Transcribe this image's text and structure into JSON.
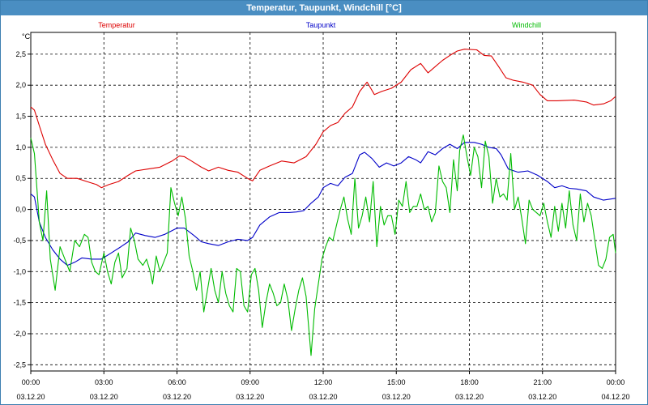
{
  "window": {
    "title": "Temperatur, Taupunkt, Windchill [°C]"
  },
  "chart_data": {
    "type": "line",
    "title": "Temperatur, Taupunkt, Windchill [°C]",
    "unit_label": "°C",
    "ylim": [
      -2.6,
      2.85
    ],
    "y_ticks": [
      2.5,
      2.0,
      1.5,
      1.0,
      0.5,
      0.0,
      -0.5,
      -1.0,
      -1.5,
      -2.0,
      -2.5
    ],
    "y_tick_labels": [
      "2,5",
      "2,0",
      "1,5",
      "1,0",
      "0,5",
      "0,0",
      "-0,5",
      "-1,0",
      "-1,5",
      "-2,0",
      "-2,5"
    ],
    "xlim": [
      0,
      24
    ],
    "x_ticks": [
      {
        "h": 0,
        "time": "00:00",
        "date": "03.12.20"
      },
      {
        "h": 3,
        "time": "03:00",
        "date": "03.12.20"
      },
      {
        "h": 6,
        "time": "06:00",
        "date": "03.12.20"
      },
      {
        "h": 9,
        "time": "09:00",
        "date": "03.12.20"
      },
      {
        "h": 12,
        "time": "12:00",
        "date": "03.12.20"
      },
      {
        "h": 15,
        "time": "15:00",
        "date": "03.12.20"
      },
      {
        "h": 18,
        "time": "18:00",
        "date": "03.12.20"
      },
      {
        "h": 21,
        "time": "21:00",
        "date": "03.12.20"
      },
      {
        "h": 24,
        "time": "00:00",
        "date": "04.12.20"
      }
    ],
    "grid": true,
    "legend_position": "top",
    "series": [
      {
        "name": "Temperatur",
        "color": "#dd0000",
        "points": [
          [
            0.0,
            1.65
          ],
          [
            0.15,
            1.6
          ],
          [
            0.35,
            1.35
          ],
          [
            0.6,
            1.05
          ],
          [
            0.9,
            0.8
          ],
          [
            1.2,
            0.58
          ],
          [
            1.5,
            0.5
          ],
          [
            1.9,
            0.5
          ],
          [
            2.3,
            0.45
          ],
          [
            2.7,
            0.4
          ],
          [
            2.9,
            0.35
          ],
          [
            3.2,
            0.4
          ],
          [
            3.6,
            0.45
          ],
          [
            4.0,
            0.55
          ],
          [
            4.3,
            0.62
          ],
          [
            4.8,
            0.65
          ],
          [
            5.3,
            0.68
          ],
          [
            5.8,
            0.78
          ],
          [
            6.1,
            0.86
          ],
          [
            6.3,
            0.85
          ],
          [
            6.6,
            0.78
          ],
          [
            7.0,
            0.68
          ],
          [
            7.3,
            0.62
          ],
          [
            7.7,
            0.68
          ],
          [
            8.1,
            0.63
          ],
          [
            8.5,
            0.6
          ],
          [
            8.9,
            0.5
          ],
          [
            9.1,
            0.46
          ],
          [
            9.4,
            0.63
          ],
          [
            9.8,
            0.7
          ],
          [
            10.3,
            0.78
          ],
          [
            10.8,
            0.75
          ],
          [
            11.3,
            0.85
          ],
          [
            11.7,
            1.05
          ],
          [
            12.0,
            1.25
          ],
          [
            12.3,
            1.35
          ],
          [
            12.6,
            1.4
          ],
          [
            12.9,
            1.55
          ],
          [
            13.2,
            1.65
          ],
          [
            13.5,
            1.9
          ],
          [
            13.8,
            2.05
          ],
          [
            14.1,
            1.85
          ],
          [
            14.4,
            1.9
          ],
          [
            14.8,
            1.95
          ],
          [
            15.2,
            2.05
          ],
          [
            15.6,
            2.25
          ],
          [
            16.0,
            2.35
          ],
          [
            16.3,
            2.2
          ],
          [
            16.6,
            2.3
          ],
          [
            16.9,
            2.4
          ],
          [
            17.2,
            2.48
          ],
          [
            17.5,
            2.55
          ],
          [
            17.8,
            2.58
          ],
          [
            18.3,
            2.57
          ],
          [
            18.6,
            2.48
          ],
          [
            18.9,
            2.47
          ],
          [
            19.2,
            2.3
          ],
          [
            19.5,
            2.12
          ],
          [
            19.8,
            2.08
          ],
          [
            20.2,
            2.05
          ],
          [
            20.6,
            2.0
          ],
          [
            20.9,
            1.85
          ],
          [
            21.2,
            1.75
          ],
          [
            21.6,
            1.75
          ],
          [
            22.3,
            1.76
          ],
          [
            22.8,
            1.73
          ],
          [
            23.1,
            1.68
          ],
          [
            23.5,
            1.7
          ],
          [
            23.8,
            1.75
          ],
          [
            24.0,
            1.82
          ]
        ]
      },
      {
        "name": "Taupunkt",
        "color": "#0000c8",
        "points": [
          [
            0.0,
            0.25
          ],
          [
            0.15,
            0.2
          ],
          [
            0.35,
            -0.2
          ],
          [
            0.6,
            -0.45
          ],
          [
            0.9,
            -0.65
          ],
          [
            1.2,
            -0.8
          ],
          [
            1.5,
            -0.9
          ],
          [
            1.8,
            -0.85
          ],
          [
            2.1,
            -0.78
          ],
          [
            2.5,
            -0.8
          ],
          [
            2.9,
            -0.8
          ],
          [
            3.3,
            -0.7
          ],
          [
            3.7,
            -0.6
          ],
          [
            4.0,
            -0.52
          ],
          [
            4.3,
            -0.38
          ],
          [
            4.7,
            -0.42
          ],
          [
            5.1,
            -0.45
          ],
          [
            5.5,
            -0.4
          ],
          [
            6.0,
            -0.3
          ],
          [
            6.3,
            -0.3
          ],
          [
            6.7,
            -0.42
          ],
          [
            7.0,
            -0.52
          ],
          [
            7.3,
            -0.55
          ],
          [
            7.7,
            -0.58
          ],
          [
            8.1,
            -0.52
          ],
          [
            8.5,
            -0.48
          ],
          [
            8.9,
            -0.5
          ],
          [
            9.1,
            -0.45
          ],
          [
            9.4,
            -0.25
          ],
          [
            9.8,
            -0.12
          ],
          [
            10.2,
            -0.05
          ],
          [
            10.6,
            -0.05
          ],
          [
            10.9,
            -0.04
          ],
          [
            11.2,
            -0.02
          ],
          [
            11.5,
            0.1
          ],
          [
            11.8,
            0.2
          ],
          [
            12.0,
            0.35
          ],
          [
            12.3,
            0.42
          ],
          [
            12.6,
            0.38
          ],
          [
            12.9,
            0.52
          ],
          [
            13.2,
            0.58
          ],
          [
            13.5,
            0.88
          ],
          [
            13.7,
            0.92
          ],
          [
            14.0,
            0.82
          ],
          [
            14.3,
            0.68
          ],
          [
            14.6,
            0.75
          ],
          [
            14.9,
            0.7
          ],
          [
            15.2,
            0.75
          ],
          [
            15.5,
            0.85
          ],
          [
            15.8,
            0.8
          ],
          [
            16.0,
            0.75
          ],
          [
            16.3,
            0.93
          ],
          [
            16.6,
            0.88
          ],
          [
            16.9,
            0.98
          ],
          [
            17.2,
            1.05
          ],
          [
            17.5,
            0.98
          ],
          [
            17.8,
            1.08
          ],
          [
            18.2,
            1.08
          ],
          [
            18.5,
            1.05
          ],
          [
            18.8,
            1.0
          ],
          [
            19.1,
            0.98
          ],
          [
            19.3,
            0.88
          ],
          [
            19.6,
            0.65
          ],
          [
            20.0,
            0.6
          ],
          [
            20.4,
            0.62
          ],
          [
            20.8,
            0.55
          ],
          [
            21.2,
            0.45
          ],
          [
            21.5,
            0.35
          ],
          [
            21.8,
            0.38
          ],
          [
            22.1,
            0.34
          ],
          [
            22.4,
            0.33
          ],
          [
            22.8,
            0.3
          ],
          [
            23.1,
            0.2
          ],
          [
            23.5,
            0.15
          ],
          [
            24.0,
            0.18
          ]
        ]
      },
      {
        "name": "Windchill",
        "color": "#00bb00",
        "points": [
          [
            0.0,
            1.15
          ],
          [
            0.15,
            0.9
          ],
          [
            0.35,
            -0.2
          ],
          [
            0.5,
            -0.5
          ],
          [
            0.65,
            0.3
          ],
          [
            0.8,
            -0.8
          ],
          [
            1.0,
            -1.3
          ],
          [
            1.2,
            -0.6
          ],
          [
            1.4,
            -0.8
          ],
          [
            1.6,
            -1.0
          ],
          [
            1.8,
            -0.5
          ],
          [
            2.0,
            -0.6
          ],
          [
            2.2,
            -0.4
          ],
          [
            2.35,
            -0.45
          ],
          [
            2.5,
            -0.85
          ],
          [
            2.65,
            -1.0
          ],
          [
            2.8,
            -1.05
          ],
          [
            3.0,
            -0.7
          ],
          [
            3.15,
            -1.0
          ],
          [
            3.3,
            -1.2
          ],
          [
            3.45,
            -0.85
          ],
          [
            3.6,
            -0.7
          ],
          [
            3.75,
            -1.1
          ],
          [
            3.95,
            -0.95
          ],
          [
            4.1,
            -0.3
          ],
          [
            4.25,
            -0.5
          ],
          [
            4.4,
            -0.8
          ],
          [
            4.6,
            -0.9
          ],
          [
            4.75,
            -0.8
          ],
          [
            4.9,
            -1.0
          ],
          [
            5.0,
            -1.2
          ],
          [
            5.15,
            -0.75
          ],
          [
            5.3,
            -1.0
          ],
          [
            5.45,
            -0.85
          ],
          [
            5.6,
            -0.7
          ],
          [
            5.75,
            0.35
          ],
          [
            5.9,
            0.1
          ],
          [
            6.05,
            -0.1
          ],
          [
            6.2,
            0.2
          ],
          [
            6.35,
            -0.15
          ],
          [
            6.5,
            -0.75
          ],
          [
            6.65,
            -1.0
          ],
          [
            6.8,
            -1.3
          ],
          [
            6.95,
            -1.0
          ],
          [
            7.1,
            -1.65
          ],
          [
            7.25,
            -1.3
          ],
          [
            7.4,
            -0.95
          ],
          [
            7.55,
            -1.3
          ],
          [
            7.7,
            -1.5
          ],
          [
            7.85,
            -1.0
          ],
          [
            8.0,
            -1.35
          ],
          [
            8.15,
            -1.55
          ],
          [
            8.3,
            -1.65
          ],
          [
            8.45,
            -0.95
          ],
          [
            8.6,
            -1.0
          ],
          [
            8.75,
            -1.55
          ],
          [
            8.9,
            -1.65
          ],
          [
            9.05,
            -1.05
          ],
          [
            9.2,
            -0.95
          ],
          [
            9.35,
            -1.3
          ],
          [
            9.5,
            -1.9
          ],
          [
            9.65,
            -1.5
          ],
          [
            9.8,
            -1.2
          ],
          [
            9.95,
            -1.35
          ],
          [
            10.1,
            -1.55
          ],
          [
            10.25,
            -1.5
          ],
          [
            10.4,
            -1.2
          ],
          [
            10.55,
            -1.45
          ],
          [
            10.7,
            -1.95
          ],
          [
            10.85,
            -1.6
          ],
          [
            11.0,
            -1.3
          ],
          [
            11.15,
            -1.1
          ],
          [
            11.3,
            -1.4
          ],
          [
            11.5,
            -2.35
          ],
          [
            11.65,
            -1.6
          ],
          [
            11.8,
            -1.2
          ],
          [
            11.95,
            -0.8
          ],
          [
            12.1,
            -0.6
          ],
          [
            12.25,
            -0.45
          ],
          [
            12.4,
            -0.5
          ],
          [
            12.55,
            -0.25
          ],
          [
            12.7,
            0.0
          ],
          [
            12.85,
            0.2
          ],
          [
            13.0,
            -0.15
          ],
          [
            13.15,
            -0.4
          ],
          [
            13.3,
            0.5
          ],
          [
            13.45,
            -0.3
          ],
          [
            13.6,
            -0.1
          ],
          [
            13.75,
            0.2
          ],
          [
            13.9,
            -0.2
          ],
          [
            14.05,
            0.45
          ],
          [
            14.2,
            -0.6
          ],
          [
            14.35,
            0.05
          ],
          [
            14.5,
            -0.25
          ],
          [
            14.65,
            -0.1
          ],
          [
            14.8,
            -0.1
          ],
          [
            14.95,
            -0.4
          ],
          [
            15.1,
            0.15
          ],
          [
            15.25,
            0.05
          ],
          [
            15.4,
            0.45
          ],
          [
            15.55,
            -0.05
          ],
          [
            15.7,
            0.05
          ],
          [
            15.85,
            0.05
          ],
          [
            16.0,
            0.25
          ],
          [
            16.15,
            0.0
          ],
          [
            16.3,
            0.05
          ],
          [
            16.45,
            -0.2
          ],
          [
            16.6,
            -0.05
          ],
          [
            16.75,
            0.7
          ],
          [
            16.9,
            0.45
          ],
          [
            17.05,
            0.35
          ],
          [
            17.2,
            -0.05
          ],
          [
            17.35,
            0.8
          ],
          [
            17.5,
            0.3
          ],
          [
            17.6,
            0.95
          ],
          [
            17.75,
            1.2
          ],
          [
            17.9,
            0.85
          ],
          [
            18.05,
            0.55
          ],
          [
            18.2,
            1.0
          ],
          [
            18.35,
            0.85
          ],
          [
            18.5,
            0.35
          ],
          [
            18.65,
            1.1
          ],
          [
            18.8,
            0.85
          ],
          [
            18.95,
            0.1
          ],
          [
            19.1,
            0.5
          ],
          [
            19.25,
            0.2
          ],
          [
            19.4,
            0.25
          ],
          [
            19.55,
            0.15
          ],
          [
            19.7,
            0.9
          ],
          [
            19.85,
            0.0
          ],
          [
            20.0,
            0.2
          ],
          [
            20.15,
            -0.15
          ],
          [
            20.3,
            -0.55
          ],
          [
            20.45,
            0.15
          ],
          [
            20.6,
            0.0
          ],
          [
            20.75,
            -0.05
          ],
          [
            20.9,
            -0.1
          ],
          [
            21.05,
            0.1
          ],
          [
            21.2,
            -0.2
          ],
          [
            21.35,
            -0.45
          ],
          [
            21.5,
            0.05
          ],
          [
            21.65,
            -0.35
          ],
          [
            21.8,
            0.1
          ],
          [
            21.95,
            -0.3
          ],
          [
            22.1,
            0.3
          ],
          [
            22.25,
            -0.25
          ],
          [
            22.4,
            -0.5
          ],
          [
            22.55,
            0.25
          ],
          [
            22.7,
            -0.2
          ],
          [
            22.85,
            0.1
          ],
          [
            23.0,
            -0.1
          ],
          [
            23.15,
            -0.5
          ],
          [
            23.3,
            -0.9
          ],
          [
            23.45,
            -0.95
          ],
          [
            23.6,
            -0.8
          ],
          [
            23.75,
            -0.45
          ],
          [
            23.9,
            -0.4
          ],
          [
            24.0,
            -0.7
          ]
        ]
      }
    ]
  }
}
